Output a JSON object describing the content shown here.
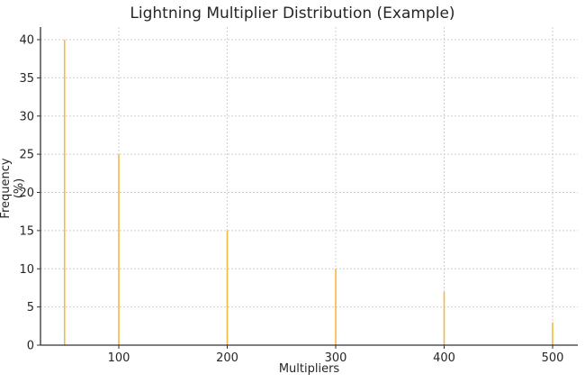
{
  "chart_data": {
    "type": "bar",
    "title": "Lightning Multiplier Distribution (Example)",
    "xlabel": "Multipliers",
    "ylabel": "Frequency (%)",
    "categories": [
      50,
      100,
      200,
      300,
      400,
      500
    ],
    "values": [
      40,
      25,
      15,
      10,
      7,
      3
    ],
    "xlim": [
      28,
      522
    ],
    "ylim": [
      0,
      42
    ],
    "xticks": [
      100,
      200,
      300,
      400,
      500
    ],
    "yticks": [
      0,
      5,
      10,
      15,
      20,
      25,
      30,
      35,
      40
    ],
    "grid": true,
    "bar_color": "#f5b942",
    "legend": null
  }
}
